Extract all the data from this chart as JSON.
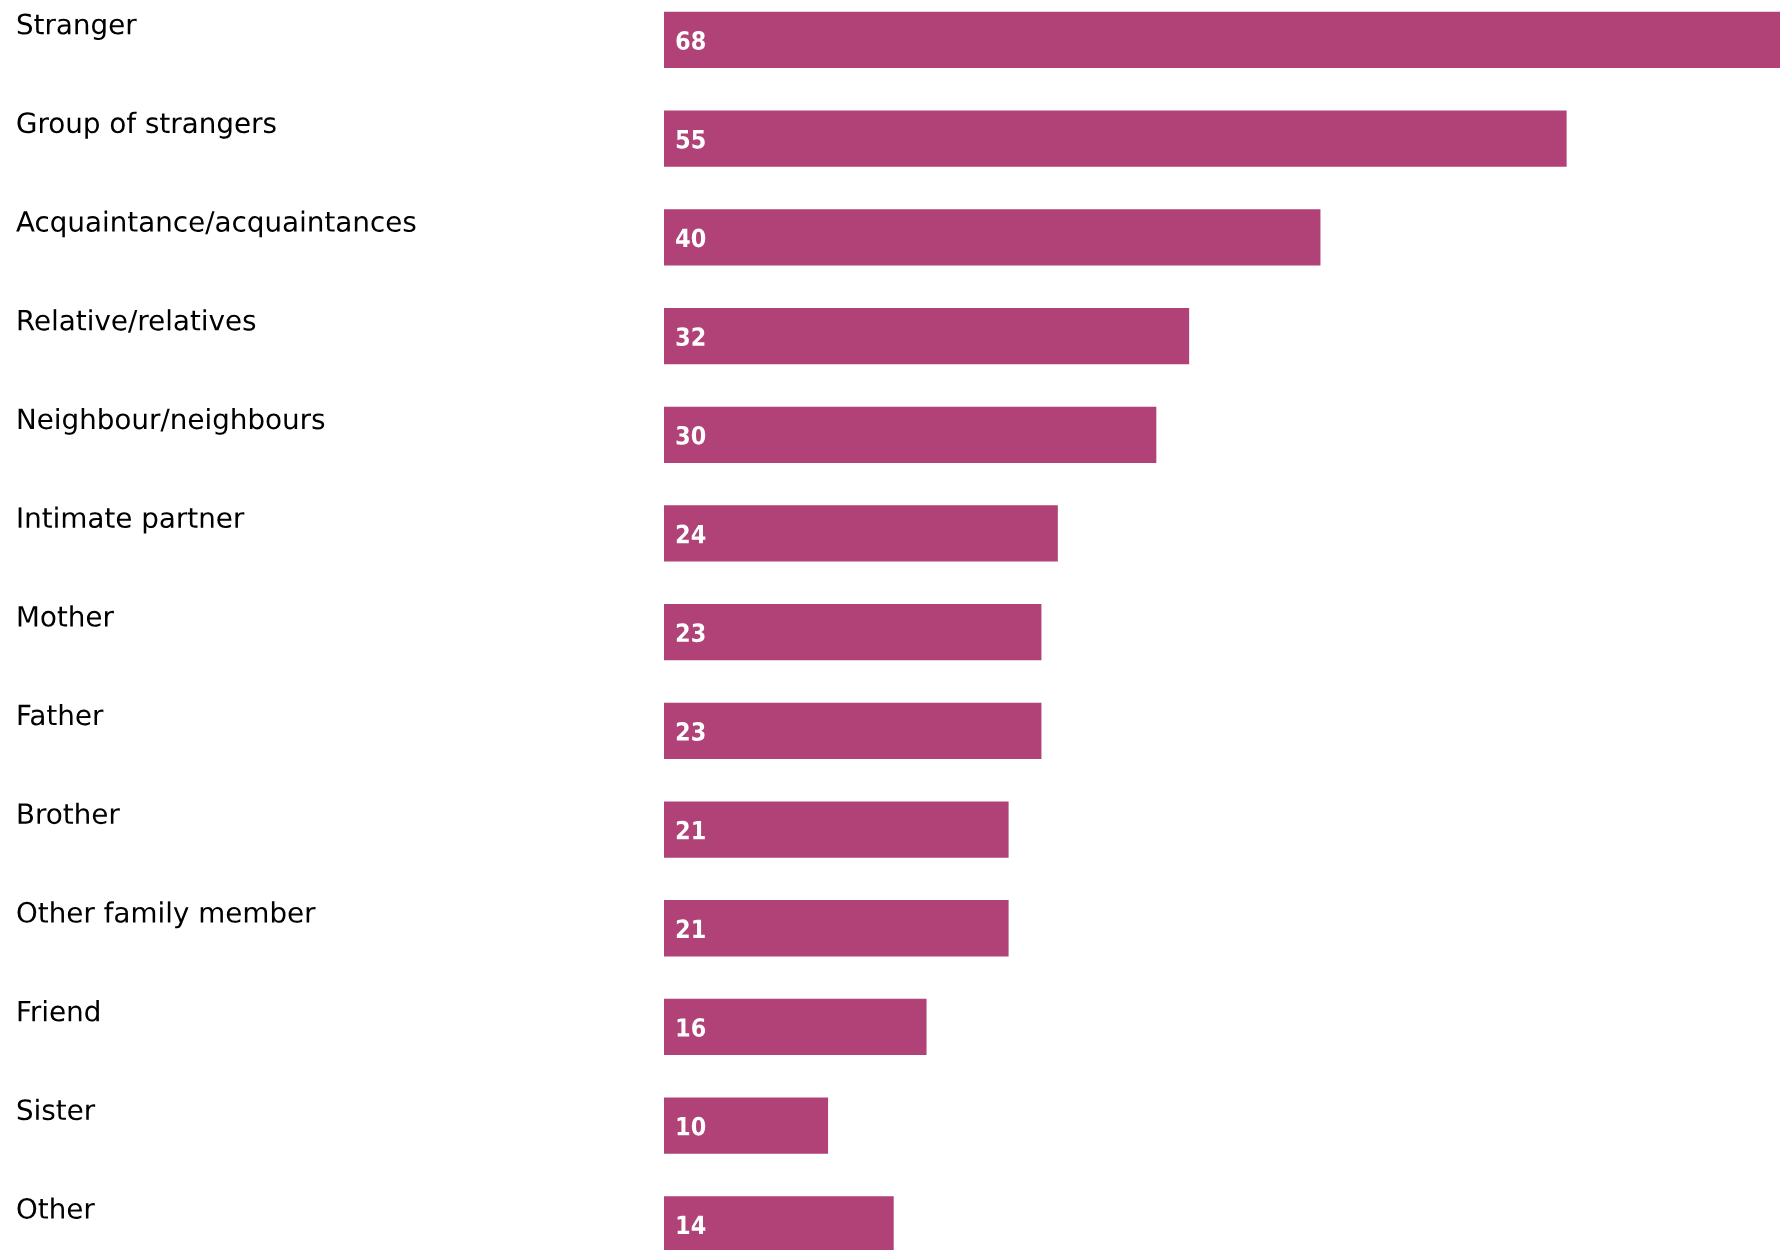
{
  "chart_data": {
    "type": "bar",
    "orientation": "horizontal",
    "data_labels": true,
    "color": "#b04278",
    "categories": [
      "Stranger",
      "Group of strangers",
      "Acquaintance/acquaintances",
      "Relative/relatives",
      "Neighbour/neighbours",
      "Intimate partner",
      "Mother",
      "Father",
      "Brother",
      "Other family member",
      "Friend",
      "Sister",
      "Other"
    ],
    "values": [
      68,
      55,
      40,
      32,
      30,
      24,
      23,
      23,
      21,
      21,
      16,
      10,
      14
    ]
  }
}
